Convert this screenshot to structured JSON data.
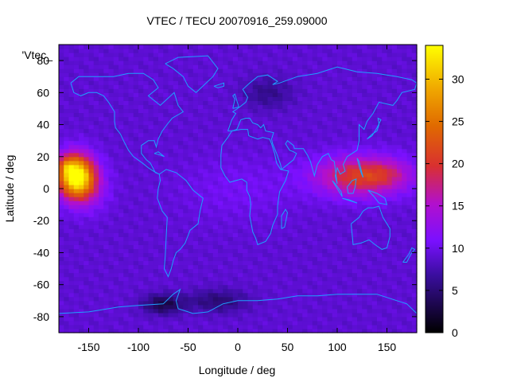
{
  "chart_data": {
    "type": "heatmap",
    "title": "VTEC / TECU 20070916_259.09000",
    "xlabel": "Longitude / deg",
    "ylabel": "Latitude / deg",
    "legend_label": "'Vtec_",
    "xlim": [
      -180,
      180
    ],
    "ylim": [
      -90,
      90
    ],
    "x_ticks": [
      -150,
      -100,
      -50,
      0,
      50,
      100,
      150
    ],
    "y_ticks": [
      -80,
      -60,
      -40,
      -20,
      0,
      20,
      40,
      60,
      80
    ],
    "colorbar": {
      "range": [
        0,
        34
      ],
      "ticks": [
        0,
        5,
        10,
        15,
        20,
        25,
        30
      ]
    },
    "grid_resolution_deg": {
      "lon": 5,
      "lat": 2.5
    },
    "features": [
      {
        "lon": -163,
        "lat": 8,
        "peak": 26,
        "sx": 18,
        "sy": 13
      },
      {
        "lon": -172,
        "lat": 14,
        "peak": 5,
        "sx": 8,
        "sy": 6
      },
      {
        "lon": -150,
        "lat": 0,
        "peak": 4,
        "sx": 20,
        "sy": 14
      },
      {
        "lon": 125,
        "lat": 8,
        "peak": 12,
        "sx": 45,
        "sy": 12
      },
      {
        "lon": 150,
        "lat": 10,
        "peak": 2,
        "sx": 20,
        "sy": 8
      },
      {
        "lon": 0,
        "lat": 0,
        "peak": 1.5,
        "sx": 60,
        "sy": 20
      },
      {
        "lon": -75,
        "lat": -72,
        "peak": -6,
        "sx": 20,
        "sy": 6
      },
      {
        "lon": -20,
        "lat": -70,
        "peak": -4,
        "sx": 30,
        "sy": 7
      },
      {
        "lon": 30,
        "lat": 60,
        "peak": -3,
        "sx": 25,
        "sy": 10
      }
    ],
    "baseline": 9
  }
}
